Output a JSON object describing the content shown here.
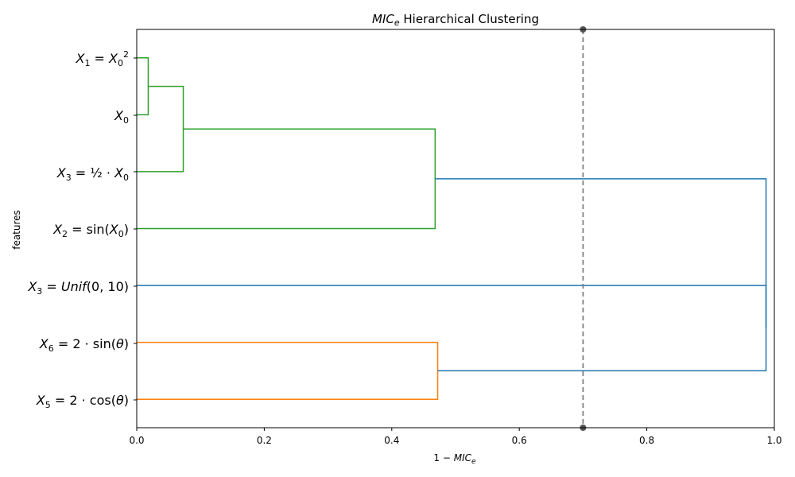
{
  "chart_data": {
    "type": "dendrogram",
    "title": {
      "italic": "MIC",
      "sub": "e",
      "rest": " Hierarchical Clustering"
    },
    "xlabel": {
      "plain": "1 − ",
      "italic": "MIC",
      "sub": "e"
    },
    "ylabel": "features",
    "xlim": [
      0.0,
      1.0
    ],
    "xticks": [
      "0.0",
      "0.2",
      "0.4",
      "0.6",
      "0.8",
      "1.0"
    ],
    "threshold": 0.7,
    "colors": {
      "green": "#2ca02c",
      "orange": "#ff7f0e",
      "blue": "#1f77b4",
      "threshold": "#808080"
    },
    "leaves": [
      {
        "id": "x1",
        "label": "X1 = X0²"
      },
      {
        "id": "x0",
        "label": "X0"
      },
      {
        "id": "x3half",
        "label": "X3 = ½ · X0"
      },
      {
        "id": "x2",
        "label": "X2 = sin(X0)"
      },
      {
        "id": "x3unif",
        "label": "X3 = Unif(0, 10)"
      },
      {
        "id": "x6",
        "label": "X6 = 2 · sin(θ)"
      },
      {
        "id": "x5",
        "label": "X5 = 2 · cos(θ)"
      }
    ],
    "merges": [
      {
        "left": "x1",
        "right": "x0",
        "distance": 0.018,
        "color": "green"
      },
      {
        "left": "m0",
        "right": "x3half",
        "distance": 0.073,
        "color": "green"
      },
      {
        "left": "m1",
        "right": "x2",
        "distance": 0.468,
        "color": "green"
      },
      {
        "left": "x6",
        "right": "x5",
        "distance": 0.472,
        "color": "orange"
      },
      {
        "left": "x3unif",
        "right": "m3",
        "distance": 0.987,
        "color": "blue"
      },
      {
        "left": "m2",
        "right": "m4",
        "distance": 0.987,
        "color": "blue"
      }
    ]
  }
}
